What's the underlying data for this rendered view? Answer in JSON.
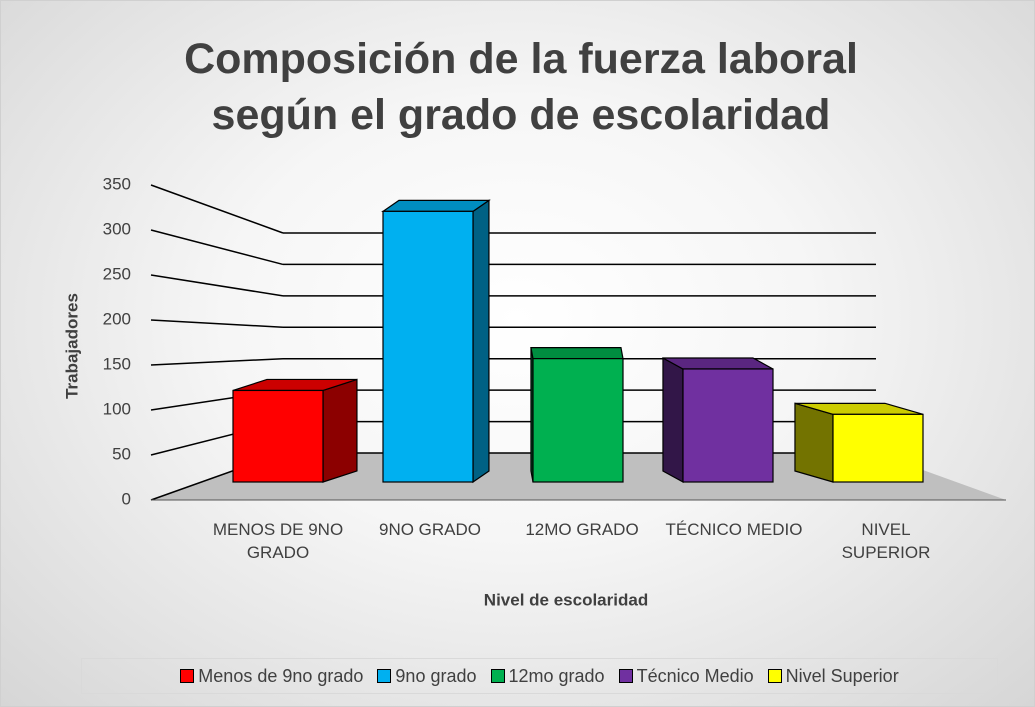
{
  "chart_data": {
    "type": "bar3d",
    "title": "Composición de la fuerza laboral según el grado de escolaridad",
    "y_label": "Trabajadores",
    "x_label": "Nivel de escolaridad",
    "categories": [
      "MENOS DE 9NO GRADO",
      "9NO GRADO",
      "12MO GRADO",
      "TÉCNICO MEDIO",
      "NIVEL SUPERIOR"
    ],
    "values": [
      115,
      340,
      155,
      142,
      85
    ],
    "colors": [
      "#ff0000",
      "#00b0f0",
      "#00b050",
      "#7030a0",
      "#ffff00"
    ],
    "legend_labels": [
      "Menos de 9no grado",
      "9no grado",
      "12mo grado",
      "Técnico Medio",
      "Nivel Superior"
    ],
    "ylim": [
      0,
      350
    ],
    "yticks": [
      0,
      50,
      100,
      150,
      200,
      250,
      300,
      350
    ],
    "grid": true,
    "legend": "bottom"
  }
}
